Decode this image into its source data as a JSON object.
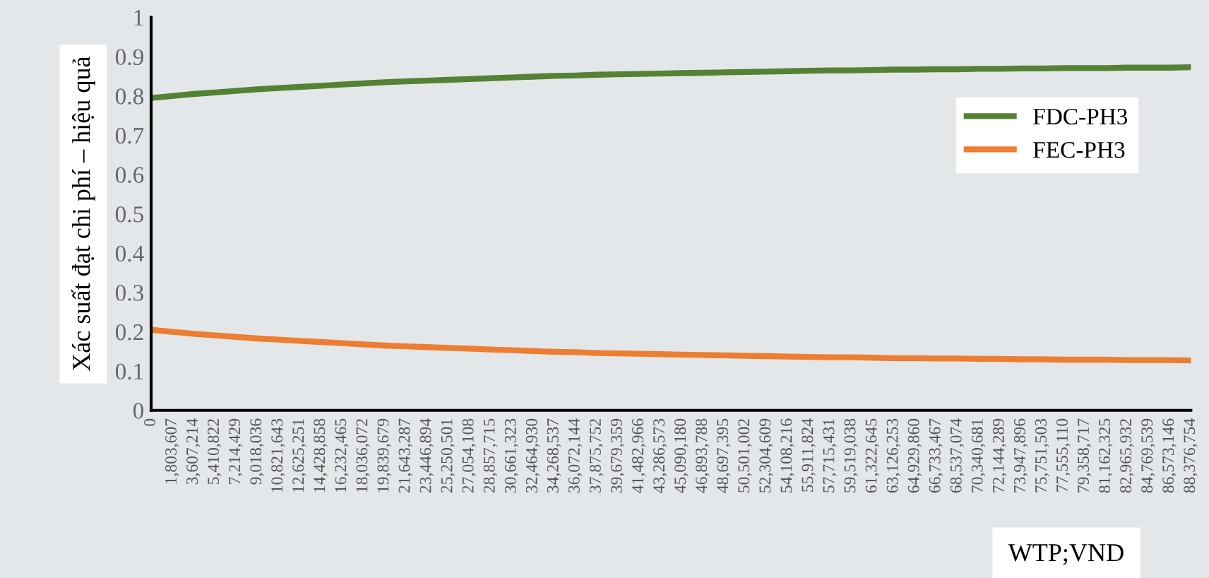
{
  "chart_data": {
    "type": "line",
    "xlabel": "WTP;VND",
    "ylabel": "Xác suất đạt chi phí – hiệu quả",
    "categories": [
      "0",
      "1,803,607",
      "3,607,214",
      "5,410,822",
      "7,214,429",
      "9,018,036",
      "10,821,643",
      "12,625,251",
      "14,428,858",
      "16,232,465",
      "18,036,072",
      "19,839,679",
      "21,643,287",
      "23,446,894",
      "25,250,501",
      "27,054,108",
      "28,857,715",
      "30,661,323",
      "32,464,930",
      "34,268,537",
      "36,072,144",
      "37,875,752",
      "39,679,359",
      "41,482,966",
      "43,286,573",
      "45,090,180",
      "46,893,788",
      "48,697,395",
      "50,501,002",
      "52,304,609",
      "54,108,216",
      "55,911,824",
      "57,715,431",
      "59,519,038",
      "61,322,645",
      "63,126,253",
      "64,929,860",
      "66,733,467",
      "68,537,074",
      "70,340,681",
      "72,144,289",
      "73,947,896",
      "75,751,503",
      "77,555,110",
      "79,358,717",
      "81,162,325",
      "82,965,932",
      "84,769,539",
      "86,573,146",
      "88,376,754"
    ],
    "series": [
      {
        "name": "FDC-PH3",
        "color": "#548235",
        "values": [
          0.795,
          0.8,
          0.805,
          0.809,
          0.813,
          0.817,
          0.82,
          0.823,
          0.826,
          0.829,
          0.832,
          0.835,
          0.837,
          0.839,
          0.841,
          0.843,
          0.845,
          0.847,
          0.849,
          0.851,
          0.852,
          0.854,
          0.855,
          0.856,
          0.857,
          0.858,
          0.859,
          0.86,
          0.861,
          0.862,
          0.863,
          0.864,
          0.865,
          0.865,
          0.866,
          0.867,
          0.867,
          0.868,
          0.868,
          0.869,
          0.869,
          0.87,
          0.87,
          0.871,
          0.871,
          0.871,
          0.872,
          0.872,
          0.872,
          0.873
        ]
      },
      {
        "name": "FEC-PH3",
        "color": "#ed7d31",
        "values": [
          0.205,
          0.2,
          0.195,
          0.191,
          0.187,
          0.183,
          0.18,
          0.177,
          0.174,
          0.171,
          0.168,
          0.165,
          0.163,
          0.161,
          0.159,
          0.157,
          0.155,
          0.153,
          0.151,
          0.149,
          0.148,
          0.146,
          0.145,
          0.144,
          0.143,
          0.142,
          0.141,
          0.14,
          0.139,
          0.138,
          0.137,
          0.136,
          0.135,
          0.135,
          0.134,
          0.133,
          0.133,
          0.132,
          0.132,
          0.131,
          0.131,
          0.13,
          0.13,
          0.129,
          0.129,
          0.129,
          0.128,
          0.128,
          0.128,
          0.127
        ]
      }
    ],
    "ylim": [
      0,
      1
    ],
    "yticks": [
      0,
      0.1,
      0.2,
      0.3,
      0.4,
      0.5,
      0.6,
      0.7,
      0.8,
      0.9,
      1
    ],
    "grid": false,
    "legend": "right",
    "marker": "none",
    "line_style": "solid"
  }
}
